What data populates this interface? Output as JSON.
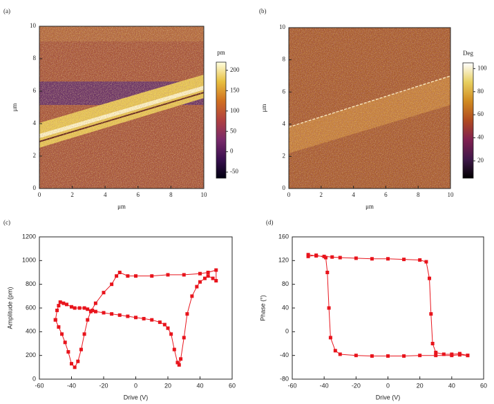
{
  "chart_data": [
    {
      "type": "image",
      "panel_label": "(a)",
      "x_label": "μm",
      "y_label": "μm",
      "xlim": [
        0,
        10
      ],
      "ylim": [
        0,
        10
      ],
      "xticks": [
        0,
        2,
        4,
        6,
        8,
        10
      ],
      "yticks": [
        0,
        2,
        4,
        6,
        8,
        10
      ],
      "colorbar_label": "pm",
      "clim": [
        -65,
        220
      ],
      "cticks": [
        -50,
        0,
        50,
        100,
        150,
        200
      ],
      "colormap": [
        "#000010",
        "#3a1050",
        "#7a2a6a",
        "#b04040",
        "#d07020",
        "#e8c040",
        "#ffffe0"
      ]
    },
    {
      "type": "image",
      "panel_label": "(b)",
      "x_label": "μm",
      "y_label": "μm",
      "xlim": [
        0,
        10
      ],
      "ylim": [
        0,
        10
      ],
      "xticks": [
        0,
        2,
        4,
        6,
        8,
        10
      ],
      "yticks": [
        0,
        2,
        4,
        6,
        8,
        10
      ],
      "colorbar_label": "Deg",
      "clim": [
        5,
        105
      ],
      "cticks": [
        20,
        40,
        60,
        80,
        100
      ],
      "colormap": [
        "#000000",
        "#40184a",
        "#802050",
        "#b04a20",
        "#d08a20",
        "#e8d060",
        "#ffffff"
      ]
    },
    {
      "type": "line",
      "panel_label": "(c)",
      "x_label": "Drive (V)",
      "y_label": "Amplitude (pm)",
      "color": "#e8141c",
      "xlim": [
        -60,
        60
      ],
      "ylim": [
        0,
        1200
      ],
      "xticks": [
        -60,
        -40,
        -20,
        0,
        20,
        40,
        60
      ],
      "yticks": [
        0,
        200,
        400,
        600,
        800,
        1000,
        1200
      ],
      "x": [
        -50,
        -49,
        -48,
        -47,
        -45,
        -43,
        -40,
        -38,
        -35,
        -32,
        -30,
        -27,
        -25,
        -20,
        -15,
        -10,
        -5,
        0,
        5,
        10,
        15,
        18,
        20,
        22,
        24,
        26,
        27,
        28,
        30,
        32,
        35,
        38,
        40,
        43,
        45,
        48,
        50,
        50,
        45,
        40,
        30,
        20,
        10,
        0,
        -5,
        -10,
        -12,
        -15,
        -20,
        -25,
        -28,
        -30,
        -32,
        -34,
        -36,
        -38,
        -40,
        -42,
        -44,
        -46,
        -48,
        -50
      ],
      "values": [
        500,
        580,
        620,
        650,
        640,
        630,
        610,
        600,
        600,
        600,
        590,
        580,
        570,
        560,
        550,
        540,
        530,
        520,
        510,
        500,
        480,
        460,
        430,
        380,
        250,
        140,
        120,
        170,
        350,
        550,
        700,
        780,
        820,
        850,
        870,
        850,
        830,
        920,
        900,
        890,
        880,
        880,
        870,
        870,
        870,
        900,
        870,
        800,
        730,
        640,
        570,
        500,
        380,
        250,
        150,
        100,
        130,
        230,
        310,
        380,
        440,
        500
      ]
    },
    {
      "type": "line",
      "panel_label": "(d)",
      "x_label": "Drive (V)",
      "y_label": "Phase (°)",
      "color": "#e8141c",
      "xlim": [
        -60,
        60
      ],
      "ylim": [
        -80,
        160
      ],
      "xticks": [
        -60,
        -40,
        -20,
        0,
        20,
        40,
        60
      ],
      "yticks": [
        -80,
        -40,
        0,
        40,
        80,
        120,
        160
      ],
      "x": [
        -50,
        -45,
        -40,
        -35,
        -30,
        -20,
        -10,
        0,
        10,
        20,
        24,
        26,
        27,
        28,
        30,
        35,
        40,
        45,
        50,
        50,
        45,
        40,
        30,
        20,
        10,
        0,
        -10,
        -20,
        -30,
        -33,
        -36,
        -37,
        -38,
        -39,
        -45,
        -50
      ],
      "values": [
        130,
        128,
        127,
        126,
        125,
        124,
        123,
        123,
        122,
        121,
        118,
        90,
        30,
        -20,
        -35,
        -38,
        -38,
        -37,
        -40,
        -40,
        -39,
        -40,
        -40,
        -40,
        -41,
        -41,
        -41,
        -40,
        -38,
        -32,
        -10,
        40,
        100,
        125,
        129,
        127
      ]
    }
  ]
}
